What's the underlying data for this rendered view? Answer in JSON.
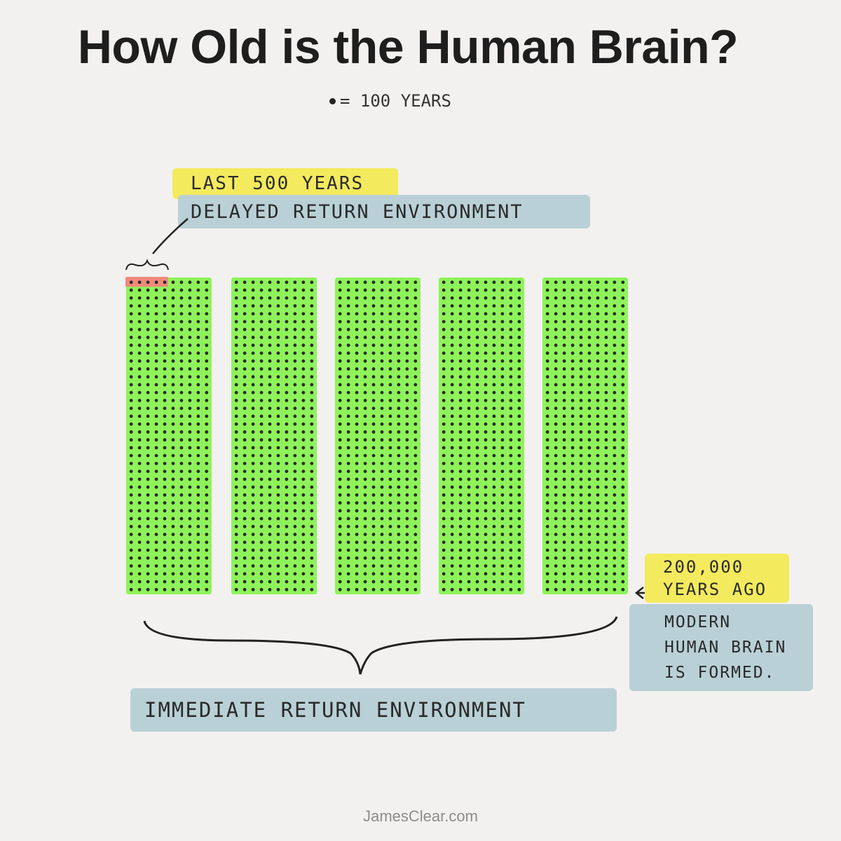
{
  "title": "How Old is the Human Brain?",
  "legend": {
    "symbol": "•",
    "text": "= 100 YEARS"
  },
  "annotations": {
    "last_years": "LAST 500 YEARS",
    "delayed": "DELAYED RETURN ENVIRONMENT",
    "years_ago_line1": "200,000",
    "years_ago_line2": "YEARS AGO",
    "modern_line1": "MODERN",
    "modern_line2": "HUMAN BRAIN",
    "modern_line3": "IS FORMED.",
    "immediate": "IMMEDIATE RETURN ENVIRONMENT"
  },
  "chart_data": {
    "type": "dot-grid",
    "dot_value_years": 100,
    "total_years": 200000,
    "total_dots": 2000,
    "columns": 5,
    "dots_per_column": 400,
    "highlighted_dots": 5,
    "highlighted_years": 500
  },
  "colors": {
    "block_fill": "#8ef35a",
    "dot": "#2b2b2b",
    "highlight": "#ef8a7c",
    "yellow_marker": "#f3ea5d",
    "blue_marker": "#b9d0d6"
  },
  "footer": "JamesClear.com"
}
